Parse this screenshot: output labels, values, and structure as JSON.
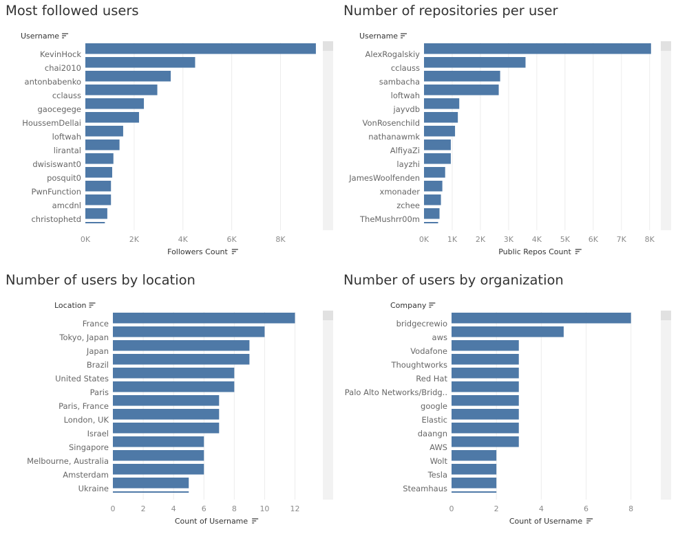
{
  "chart_data": [
    {
      "type": "bar",
      "orientation": "horizontal",
      "title": "Most followed users",
      "category_header": "Username",
      "xlabel": "Followers Count",
      "x_ticks": [
        "0K",
        "2K",
        "4K",
        "6K",
        "8K"
      ],
      "x_tick_values": [
        0,
        2000,
        4000,
        6000,
        8000
      ],
      "xlim": [
        0,
        9650
      ],
      "categories": [
        "KevinHock",
        "chai2010",
        "antonbabenko",
        "cclauss",
        "gaocegege",
        "HoussemDellai",
        "loftwah",
        "lirantal",
        "dwisiswant0",
        "posquit0",
        "PwnFunction",
        "amcdnl",
        "christophetd"
      ],
      "values": [
        9450,
        4500,
        3500,
        2950,
        2400,
        2200,
        1550,
        1400,
        1150,
        1100,
        1050,
        1050,
        900
      ],
      "partial_next_value": 800,
      "color": "#4e79a7",
      "grid": true
    },
    {
      "type": "bar",
      "orientation": "horizontal",
      "title": "Number of repositories per user",
      "category_header": "Username",
      "xlabel": "Public Repos Count",
      "x_ticks": [
        "0K",
        "1K",
        "2K",
        "3K",
        "4K",
        "5K",
        "6K",
        "7K",
        "8K"
      ],
      "x_tick_values": [
        0,
        1000,
        2000,
        3000,
        4000,
        5000,
        6000,
        7000,
        8000
      ],
      "xlim": [
        0,
        8250
      ],
      "categories": [
        "AlexRogalskiy",
        "cclauss",
        "sambacha",
        "loftwah",
        "jayvdb",
        "VonRosenchild",
        "nathanawmk",
        "AlfiyaZi",
        "layzhi",
        "JamesWoolfenden",
        "xmonader",
        "zchee",
        "TheMushrr00m"
      ],
      "values": [
        8050,
        3600,
        2700,
        2650,
        1250,
        1200,
        1100,
        950,
        950,
        750,
        650,
        600,
        550
      ],
      "partial_next_value": 500,
      "color": "#4e79a7",
      "grid": true
    },
    {
      "type": "bar",
      "orientation": "horizontal",
      "title": "Number of users by location",
      "category_header": "Location",
      "xlabel": "Count of Username",
      "x_ticks": [
        "0",
        "2",
        "4",
        "6",
        "8",
        "10",
        "12"
      ],
      "x_tick_values": [
        0,
        2,
        4,
        6,
        8,
        10,
        12
      ],
      "xlim": [
        0,
        13.7
      ],
      "categories": [
        "France",
        "Tokyo, Japan",
        "Japan",
        "Brazil",
        "United States",
        "Paris",
        "Paris, France",
        "London, UK",
        "Israel",
        "Singapore",
        "Melbourne, Australia",
        "Amsterdam",
        "Ukraine"
      ],
      "values": [
        12,
        10,
        9,
        9,
        8,
        8,
        7,
        7,
        7,
        6,
        6,
        6,
        5
      ],
      "partial_next_value": 5,
      "color": "#4e79a7",
      "grid": true
    },
    {
      "type": "bar",
      "orientation": "horizontal",
      "title": "Number of users by organization",
      "category_header": "Company",
      "xlabel": "Count of Username",
      "x_ticks": [
        "0",
        "2",
        "4",
        "6",
        "8"
      ],
      "x_tick_values": [
        0,
        2,
        4,
        6,
        8
      ],
      "xlim": [
        0,
        8.9
      ],
      "categories": [
        "bridgecrewio",
        "aws",
        "Vodafone",
        "Thoughtworks",
        "Red Hat",
        "Palo Alto Networks/Bridg..",
        "google",
        "Elastic",
        "daangn",
        "AWS",
        "Wolt",
        "Tesla",
        "Steamhaus"
      ],
      "values": [
        8,
        5,
        3,
        3,
        3,
        3,
        3,
        3,
        3,
        3,
        2,
        2,
        2
      ],
      "partial_next_value": 2,
      "color": "#4e79a7",
      "grid": true
    }
  ],
  "icons": {
    "sort": "sort-descending-icon"
  }
}
